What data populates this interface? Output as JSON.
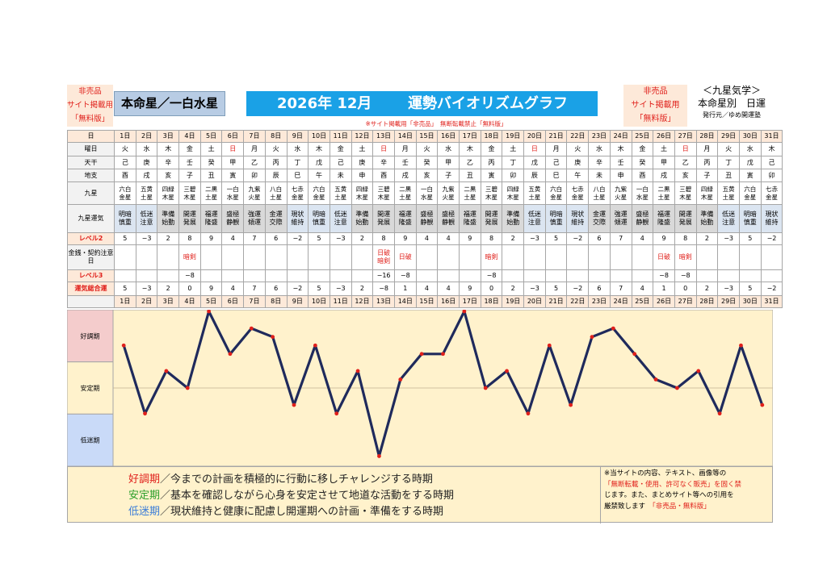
{
  "header": {
    "nonsale_left": [
      "非売品",
      "サイト掲載用",
      "「無料版」"
    ],
    "honmei": "本命星／一白水星",
    "title_year_month": "2026年 12月",
    "title_main": "運勢バイオリズムグラフ",
    "nonsale_right": [
      "非売品",
      "サイト掲載用",
      "「無料版」"
    ],
    "right_title": "＜九星気学＞",
    "right_sub": "本命星別　日運",
    "publisher": "発行元／ゆめ開運塾",
    "notice": "※サイト掲載用「非売品」　無断転載禁止「無料版」"
  },
  "row_labels": {
    "date": "日",
    "weekday": "曜日",
    "stem": "天干",
    "branch": "地支",
    "star": "九星",
    "fortune": "九星運気",
    "level2": "レベル2",
    "money": "金銭・契約注意日",
    "level3": "レベル3",
    "total": "運気総合運"
  },
  "days": [
    "1日",
    "2日",
    "3日",
    "4日",
    "5日",
    "6日",
    "7日",
    "8日",
    "9日",
    "10日",
    "11日",
    "12日",
    "13日",
    "14日",
    "15日",
    "16日",
    "17日",
    "18日",
    "19日",
    "20日",
    "21日",
    "22日",
    "23日",
    "24日",
    "25日",
    "26日",
    "27日",
    "28日",
    "29日",
    "30日",
    "31日"
  ],
  "weekdays": [
    "火",
    "水",
    "木",
    "金",
    "土",
    "日",
    "月",
    "火",
    "水",
    "木",
    "金",
    "土",
    "日",
    "月",
    "火",
    "水",
    "木",
    "金",
    "土",
    "日",
    "月",
    "火",
    "水",
    "木",
    "金",
    "土",
    "日",
    "月",
    "火",
    "水",
    "木"
  ],
  "stems": [
    "己",
    "庚",
    "辛",
    "壬",
    "癸",
    "甲",
    "乙",
    "丙",
    "丁",
    "戊",
    "己",
    "庚",
    "辛",
    "壬",
    "癸",
    "甲",
    "乙",
    "丙",
    "丁",
    "戊",
    "己",
    "庚",
    "辛",
    "壬",
    "癸",
    "甲",
    "乙",
    "丙",
    "丁",
    "戊",
    "己"
  ],
  "branches": [
    "酉",
    "戌",
    "亥",
    "子",
    "丑",
    "寅",
    "卯",
    "辰",
    "巳",
    "午",
    "未",
    "申",
    "酉",
    "戌",
    "亥",
    "子",
    "丑",
    "寅",
    "卯",
    "辰",
    "巳",
    "午",
    "未",
    "申",
    "酉",
    "戌",
    "亥",
    "子",
    "丑",
    "寅",
    "卯"
  ],
  "stars": [
    "六白金星",
    "五黄土星",
    "四緑木星",
    "三碧木星",
    "二黒土星",
    "一白水星",
    "九紫火星",
    "八白土星",
    "七赤金星",
    "六白金星",
    "五黄土星",
    "四緑木星",
    "三碧木星",
    "二黒土星",
    "一白水星",
    "九紫火星",
    "二黒土星",
    "三碧木星",
    "四緑木星",
    "五黄土星",
    "六白金星",
    "七赤金星",
    "八白土星",
    "九紫火星",
    "一白水星",
    "二黒土星",
    "三碧木星",
    "四緑木星",
    "五黄土星",
    "六白金星",
    "七赤金星"
  ],
  "fortunes": [
    "明暗慎重",
    "低迷注意",
    "準備始動",
    "開運発展",
    "福運隆盛",
    "盛極静観",
    "強運傾運",
    "金運交際",
    "現状維持",
    "明暗慎重",
    "低迷注意",
    "準備始動",
    "開運発展",
    "福運隆盛",
    "盛極静観",
    "盛極静観",
    "福運隆盛",
    "開運発展",
    "準備始動",
    "低迷注意",
    "明暗慎重",
    "現状維持",
    "金運交際",
    "強運傾運",
    "盛極静観",
    "福運隆盛",
    "開運発展",
    "準備始動",
    "低迷注意",
    "明暗慎重",
    "現状維持"
  ],
  "level2": [
    "5",
    "−3",
    "2",
    "8",
    "9",
    "4",
    "7",
    "6",
    "−2",
    "5",
    "−3",
    "2",
    "8",
    "9",
    "4",
    "4",
    "9",
    "8",
    "2",
    "−3",
    "5",
    "−2",
    "6",
    "7",
    "4",
    "9",
    "8",
    "2",
    "−3",
    "5",
    "−2"
  ],
  "money": [
    "",
    "",
    "",
    "暗剣",
    "",
    "",
    "",
    "",
    "",
    "",
    "",
    "",
    "日破 暗剣",
    "日破",
    "",
    "",
    "",
    "暗剣",
    "",
    "",
    "",
    "",
    "",
    "",
    "",
    "日破",
    "暗剣",
    "",
    "",
    "",
    ""
  ],
  "level3": [
    "",
    "",
    "",
    "−8",
    "",
    "",
    "",
    "",
    "",
    "",
    "",
    "",
    "−16",
    "−8",
    "",
    "",
    "",
    "−8",
    "",
    "",
    "",
    "",
    "",
    "",
    "",
    "−8",
    "−8",
    "",
    "",
    "",
    ""
  ],
  "totals": [
    "5",
    "−3",
    "2",
    "0",
    "9",
    "4",
    "7",
    "6",
    "−2",
    "5",
    "−3",
    "2",
    "−8",
    "1",
    "4",
    "4",
    "9",
    "0",
    "2",
    "−3",
    "5",
    "−2",
    "6",
    "7",
    "4",
    "1",
    "0",
    "2",
    "−3",
    "5",
    "−2"
  ],
  "chart_data": {
    "type": "line",
    "title": "",
    "categories": [
      "1日",
      "2日",
      "3日",
      "4日",
      "5日",
      "6日",
      "7日",
      "8日",
      "9日",
      "10日",
      "11日",
      "12日",
      "13日",
      "14日",
      "15日",
      "16日",
      "17日",
      "18日",
      "19日",
      "20日",
      "21日",
      "22日",
      "23日",
      "24日",
      "25日",
      "26日",
      "27日",
      "28日",
      "29日",
      "30日",
      "31日"
    ],
    "series": [
      {
        "values": [
          5,
          -3,
          2,
          0,
          9,
          4,
          7,
          6,
          -2,
          5,
          -3,
          2,
          -8,
          1,
          4,
          4,
          9,
          0,
          2,
          -3,
          5,
          -2,
          6,
          7,
          4,
          1,
          0,
          2,
          -3,
          5,
          -2
        ]
      }
    ],
    "ylim": [
      -9,
      9
    ],
    "bands": [
      "好調期",
      "安定期",
      "低迷期"
    ],
    "line_color": "#1f2a5c",
    "marker_color": "#e0201b",
    "band_colors": [
      "#f4cccc",
      "#fff2cc",
      "#c9daf8"
    ],
    "chart_bg": "#fff2cc"
  },
  "legend": [
    {
      "head": "好調期",
      "text": "／今までの計画を積極的に行動に移しチャレンジする時期"
    },
    {
      "head": "安定期",
      "text": "／基本を確認しながら心身を安定させて地道な活動をする時期"
    },
    {
      "head": "低迷期",
      "text": "／現状維持と健康に配慮し開運期への計画・準備をする時期"
    }
  ],
  "copyright": {
    "line1": "※当サイトの内容、テキスト、画像等の",
    "line2": "「無断転載・使用、許可なく販売」を固く禁",
    "line3": "じます。また、まとめサイト等への引用を",
    "line4a": "厳禁致します",
    "line4b": "「非売品・無料版」"
  }
}
